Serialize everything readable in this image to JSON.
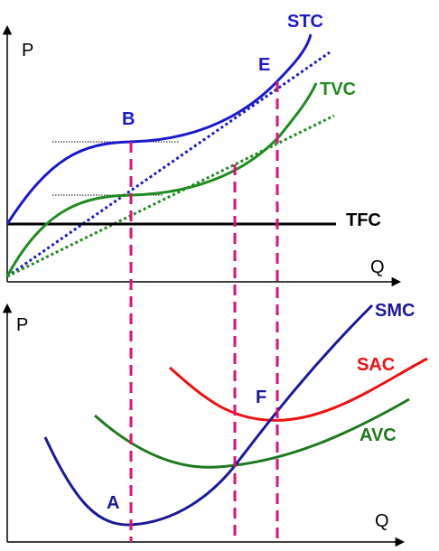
{
  "top_chart": {
    "y_axis_label": "P",
    "x_axis_label": "Q",
    "curves": {
      "stc": {
        "label": "STC",
        "color": "#1a1acc"
      },
      "tvc": {
        "label": "TVC",
        "color": "#1e8c1e"
      },
      "tfc": {
        "label": "TFC",
        "color": "#000000"
      }
    },
    "points": {
      "b": "B",
      "e": "E"
    }
  },
  "bottom_chart": {
    "y_axis_label": "P",
    "x_axis_label": "Q",
    "curves": {
      "smc": {
        "label": "SMC",
        "color": "#1a1a99"
      },
      "sac": {
        "label": "SAC",
        "color": "#ee1111"
      },
      "avc": {
        "label": "AVC",
        "color": "#1e7a1e"
      }
    },
    "points": {
      "a": "A",
      "f": "F"
    }
  },
  "guide_color": "#dd1177"
}
